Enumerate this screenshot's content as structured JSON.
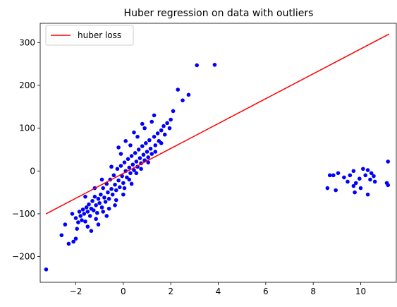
{
  "chart_data": {
    "type": "scatter",
    "title": "Huber regression on data with outliers",
    "xlabel": "",
    "ylabel": "",
    "xlim": [
      -3.5,
      11.5
    ],
    "ylim": [
      -260,
      345
    ],
    "xticks": [
      -2,
      0,
      2,
      4,
      6,
      8,
      10
    ],
    "yticks": [
      -200,
      -100,
      0,
      100,
      200,
      300
    ],
    "grid": false,
    "legend": {
      "placement": "top-left",
      "entries": [
        {
          "label": "huber loss",
          "color": "#ff0000",
          "kind": "line"
        }
      ]
    },
    "series": [
      {
        "type": "scatter",
        "color": "#0000ff",
        "points": [
          [
            -3.25,
            -230
          ],
          [
            -2.6,
            -150
          ],
          [
            -2.3,
            -170
          ],
          [
            -2.1,
            -165
          ],
          [
            -2.0,
            -158
          ],
          [
            -2.15,
            -100
          ],
          [
            -2.0,
            -110
          ],
          [
            -1.9,
            -120
          ],
          [
            -1.85,
            -95
          ],
          [
            -1.8,
            -105
          ],
          [
            -1.75,
            -115
          ],
          [
            -1.7,
            -90
          ],
          [
            -1.65,
            -100
          ],
          [
            -1.6,
            -118
          ],
          [
            -1.55,
            -85
          ],
          [
            -1.5,
            -95
          ],
          [
            -1.45,
            -78
          ],
          [
            -1.4,
            -105
          ],
          [
            -1.35,
            -88
          ],
          [
            -1.3,
            -70
          ],
          [
            -1.25,
            -92
          ],
          [
            -1.2,
            -60
          ],
          [
            -1.15,
            -80
          ],
          [
            -1.1,
            -98
          ],
          [
            -1.05,
            -65
          ],
          [
            -1.0,
            -75
          ],
          [
            -0.95,
            -55
          ],
          [
            -0.9,
            -85
          ],
          [
            -0.85,
            -40
          ],
          [
            -0.8,
            -62
          ],
          [
            -0.75,
            -72
          ],
          [
            -0.7,
            -30
          ],
          [
            -0.65,
            -50
          ],
          [
            -0.6,
            -65
          ],
          [
            -0.55,
            -20
          ],
          [
            -0.5,
            -42
          ],
          [
            -0.45,
            -55
          ],
          [
            -0.4,
            -10
          ],
          [
            -0.35,
            -32
          ],
          [
            -0.3,
            -45
          ],
          [
            -0.25,
            5
          ],
          [
            -0.2,
            -22
          ],
          [
            -0.15,
            -38
          ],
          [
            -0.1,
            12
          ],
          [
            -0.05,
            -12
          ],
          [
            0.0,
            -28
          ],
          [
            0.05,
            20
          ],
          [
            0.1,
            0
          ],
          [
            0.15,
            -15
          ],
          [
            0.2,
            28
          ],
          [
            0.25,
            8
          ],
          [
            0.3,
            -5
          ],
          [
            0.35,
            35
          ],
          [
            0.4,
            15
          ],
          [
            0.45,
            2
          ],
          [
            0.5,
            42
          ],
          [
            0.55,
            22
          ],
          [
            0.6,
            10
          ],
          [
            0.65,
            50
          ],
          [
            0.7,
            30
          ],
          [
            0.75,
            18
          ],
          [
            0.8,
            58
          ],
          [
            0.85,
            38
          ],
          [
            0.9,
            25
          ],
          [
            0.95,
            65
          ],
          [
            1.0,
            45
          ],
          [
            1.05,
            32
          ],
          [
            1.1,
            72
          ],
          [
            1.15,
            52
          ],
          [
            1.2,
            40
          ],
          [
            1.3,
            80
          ],
          [
            1.35,
            60
          ],
          [
            1.45,
            88
          ],
          [
            1.5,
            70
          ],
          [
            1.6,
            95
          ],
          [
            1.7,
            105
          ],
          [
            1.75,
            85
          ],
          [
            1.85,
            112
          ],
          [
            1.95,
            100
          ],
          [
            2.0,
            120
          ],
          [
            -1.35,
            -140
          ],
          [
            -1.05,
            -125
          ],
          [
            -0.7,
            -105
          ],
          [
            -0.35,
            -80
          ],
          [
            0.0,
            -55
          ],
          [
            0.35,
            -30
          ],
          [
            -0.9,
            -20
          ],
          [
            -0.5,
            10
          ],
          [
            -0.1,
            40
          ],
          [
            0.3,
            60
          ],
          [
            0.6,
            80
          ],
          [
            0.9,
            100
          ],
          [
            1.2,
            115
          ],
          [
            -1.6,
            -60
          ],
          [
            -1.2,
            -40
          ],
          [
            -0.2,
            55
          ],
          [
            0.1,
            70
          ],
          [
            0.45,
            90
          ],
          [
            0.8,
            110
          ],
          [
            1.3,
            130
          ],
          [
            2.1,
            140
          ],
          [
            2.3,
            190
          ],
          [
            2.5,
            165
          ],
          [
            2.75,
            178
          ],
          [
            3.1,
            247
          ],
          [
            3.85,
            248
          ],
          [
            -2.45,
            -125
          ],
          [
            -1.95,
            -135
          ],
          [
            -1.5,
            -130
          ],
          [
            -1.15,
            -112
          ],
          [
            -0.85,
            -95
          ],
          [
            -0.6,
            -88
          ],
          [
            -0.3,
            -68
          ],
          [
            0.05,
            -40
          ],
          [
            0.25,
            -20
          ],
          [
            0.55,
            -5
          ],
          [
            0.75,
            5
          ],
          [
            1.05,
            20
          ],
          [
            1.35,
            45
          ],
          [
            1.6,
            65
          ],
          [
            8.6,
            -40
          ],
          [
            8.7,
            -10
          ],
          [
            8.85,
            -10
          ],
          [
            8.95,
            -45
          ],
          [
            9.05,
            -5
          ],
          [
            9.3,
            -15
          ],
          [
            9.45,
            -25
          ],
          [
            9.55,
            -10
          ],
          [
            9.7,
            -35
          ],
          [
            9.75,
            -50
          ],
          [
            9.8,
            -28
          ],
          [
            9.95,
            -18
          ],
          [
            10.0,
            -40
          ],
          [
            10.1,
            5
          ],
          [
            10.2,
            -10
          ],
          [
            10.3,
            -55
          ],
          [
            10.4,
            -20
          ],
          [
            10.45,
            -5
          ],
          [
            10.55,
            -12
          ],
          [
            10.6,
            -25
          ],
          [
            9.7,
            0
          ],
          [
            10.3,
            2
          ],
          [
            11.15,
            22
          ],
          [
            11.1,
            -28
          ],
          [
            11.15,
            -33
          ]
        ]
      },
      {
        "type": "line",
        "name": "huber loss",
        "color": "#ff0000",
        "x": [
          -3.25,
          11.2
        ],
        "y": [
          -100,
          320
        ]
      }
    ]
  }
}
